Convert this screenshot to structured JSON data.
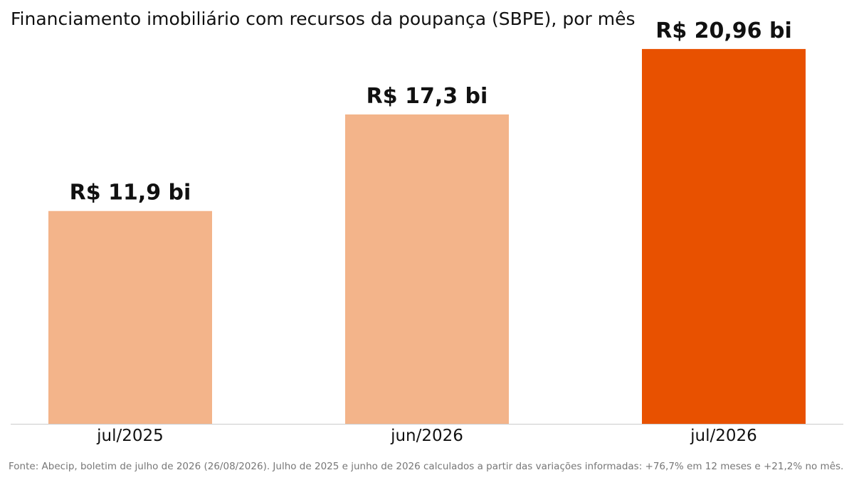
{
  "chart_data": {
    "type": "bar",
    "title": "Financiamento imobiliário com recursos da poupança (SBPE), por mês",
    "categories": [
      "jul/2025",
      "jun/2026",
      "jul/2026"
    ],
    "values": [
      11.9,
      17.3,
      20.96
    ],
    "value_labels": [
      "R$ 11,9 bi",
      "R$ 17,3 bi",
      "R$ 20,96 bi"
    ],
    "unit": "R$ bi",
    "colors": [
      "#F3B48A",
      "#F3B48A",
      "#E85100"
    ],
    "axis_color": "#CCCCCC",
    "xlabel": "",
    "ylabel": "",
    "grid": false,
    "legend": "none",
    "ylim": [
      0,
      23.7
    ]
  },
  "source": "Fonte: Abecip, boletim de julho de 2026 (26/08/2026). Julho de 2025 e junho de 2026 calculados a partir das variações informadas: +76,7% em 12 meses e +21,2% no mês."
}
